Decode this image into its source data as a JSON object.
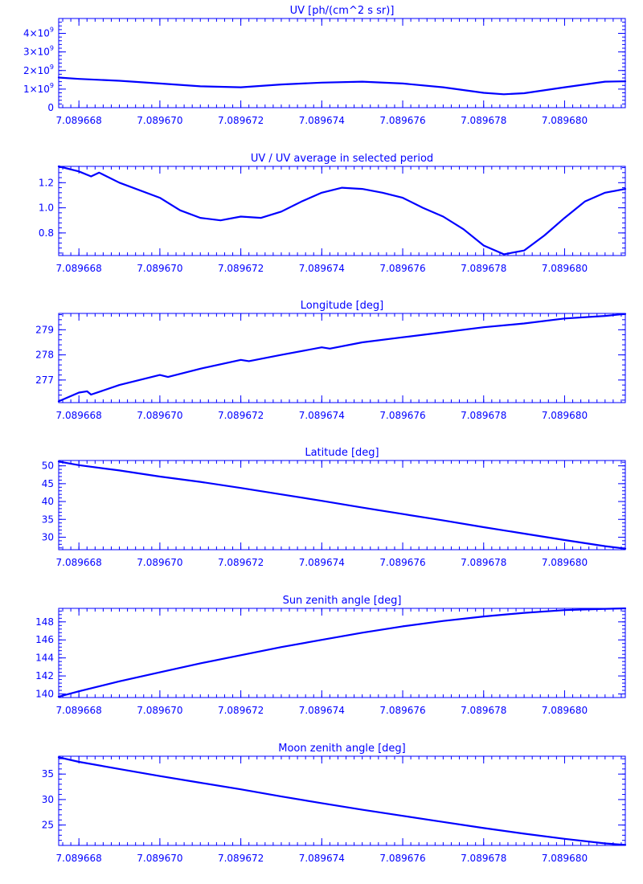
{
  "chart_data": [
    {
      "type": "line",
      "title": "UV [ph/(cm^2 s sr)]",
      "color": "#0000ff",
      "xlim": [
        7.0896675,
        7.0896815
      ],
      "ylim": [
        0,
        4800000000.0
      ],
      "xticks": [
        7.089668,
        7.08967,
        7.089672,
        7.089674,
        7.089676,
        7.089678,
        7.08968
      ],
      "xtick_labels": [
        "7.089668",
        "7.089670",
        "7.089672",
        "7.089674",
        "7.089676",
        "7.089678",
        "7.089680"
      ],
      "yticks": [
        0,
        1000000000.0,
        2000000000.0,
        3000000000.0,
        4000000000.0
      ],
      "ytick_labels": [
        {
          "mantissa": "0",
          "exp": ""
        },
        {
          "mantissa": "1×10",
          "exp": "9"
        },
        {
          "mantissa": "2×10",
          "exp": "9"
        },
        {
          "mantissa": "3×10",
          "exp": "9"
        },
        {
          "mantissa": "4×10",
          "exp": "9"
        }
      ],
      "x": [
        7.0896675,
        7.089668,
        7.089669,
        7.08967,
        7.089671,
        7.089672,
        7.089673,
        7.089674,
        7.089675,
        7.089676,
        7.089677,
        7.089678,
        7.0896785,
        7.089679,
        7.08968,
        7.089681,
        7.0896815
      ],
      "values": [
        1620000000.0,
        1550000000.0,
        1450000000.0,
        1300000000.0,
        1150000000.0,
        1100000000.0,
        1250000000.0,
        1350000000.0,
        1400000000.0,
        1300000000.0,
        1100000000.0,
        800000000.0,
        720000000.0,
        780000000.0,
        1100000000.0,
        1400000000.0,
        1420000000.0
      ]
    },
    {
      "type": "line",
      "title": "UV / UV average in selected period",
      "color": "#0000ff",
      "xlim": [
        7.0896675,
        7.0896815
      ],
      "ylim": [
        0.62,
        1.33
      ],
      "xticks": [
        7.089668,
        7.08967,
        7.089672,
        7.089674,
        7.089676,
        7.089678,
        7.08968
      ],
      "xtick_labels": [
        "7.089668",
        "7.089670",
        "7.089672",
        "7.089674",
        "7.089676",
        "7.089678",
        "7.089680"
      ],
      "yticks": [
        0.8,
        1.0,
        1.2
      ],
      "ytick_labels": [
        {
          "mantissa": "0.8",
          "exp": ""
        },
        {
          "mantissa": "1.0",
          "exp": ""
        },
        {
          "mantissa": "1.2",
          "exp": ""
        }
      ],
      "x": [
        7.0896675,
        7.089668,
        7.0896683,
        7.0896685,
        7.089669,
        7.08967,
        7.0896705,
        7.089671,
        7.0896715,
        7.089672,
        7.0896725,
        7.089673,
        7.0896735,
        7.089674,
        7.0896745,
        7.089675,
        7.0896755,
        7.089676,
        7.0896765,
        7.089677,
        7.0896775,
        7.089678,
        7.0896785,
        7.089679,
        7.0896795,
        7.08968,
        7.0896805,
        7.089681,
        7.0896815
      ],
      "values": [
        1.33,
        1.29,
        1.25,
        1.28,
        1.2,
        1.08,
        0.98,
        0.92,
        0.9,
        0.93,
        0.92,
        0.97,
        1.05,
        1.12,
        1.16,
        1.15,
        1.12,
        1.08,
        1.0,
        0.93,
        0.83,
        0.7,
        0.63,
        0.66,
        0.78,
        0.92,
        1.05,
        1.12,
        1.15
      ]
    },
    {
      "type": "line",
      "title": "Longitude [deg]",
      "color": "#0000ff",
      "xlim": [
        7.0896675,
        7.0896815
      ],
      "ylim": [
        276.1,
        279.65
      ],
      "xticks": [
        7.089668,
        7.08967,
        7.089672,
        7.089674,
        7.089676,
        7.089678,
        7.08968
      ],
      "xtick_labels": [
        "7.089668",
        "7.089670",
        "7.089672",
        "7.089674",
        "7.089676",
        "7.089678",
        "7.089680"
      ],
      "yticks": [
        277,
        278,
        279
      ],
      "ytick_labels": [
        {
          "mantissa": "277",
          "exp": ""
        },
        {
          "mantissa": "278",
          "exp": ""
        },
        {
          "mantissa": "279",
          "exp": ""
        }
      ],
      "x": [
        7.0896675,
        7.089668,
        7.0896682,
        7.0896683,
        7.089669,
        7.08967,
        7.0896702,
        7.089671,
        7.089672,
        7.0896722,
        7.089673,
        7.089674,
        7.0896742,
        7.089675,
        7.089676,
        7.089677,
        7.089678,
        7.089679,
        7.08968,
        7.089681,
        7.0896815
      ],
      "values": [
        276.15,
        276.5,
        276.55,
        276.42,
        276.8,
        277.2,
        277.12,
        277.45,
        277.8,
        277.75,
        278.0,
        278.3,
        278.25,
        278.5,
        278.7,
        278.9,
        279.1,
        279.25,
        279.45,
        279.55,
        279.63
      ]
    },
    {
      "type": "line",
      "title": "Latitude [deg]",
      "color": "#0000ff",
      "xlim": [
        7.0896675,
        7.0896815
      ],
      "ylim": [
        26.5,
        51.5
      ],
      "xticks": [
        7.089668,
        7.08967,
        7.089672,
        7.089674,
        7.089676,
        7.089678,
        7.08968
      ],
      "xtick_labels": [
        "7.089668",
        "7.089670",
        "7.089672",
        "7.089674",
        "7.089676",
        "7.089678",
        "7.089680"
      ],
      "yticks": [
        30,
        35,
        40,
        45,
        50
      ],
      "ytick_labels": [
        {
          "mantissa": "30",
          "exp": ""
        },
        {
          "mantissa": "35",
          "exp": ""
        },
        {
          "mantissa": "40",
          "exp": ""
        },
        {
          "mantissa": "45",
          "exp": ""
        },
        {
          "mantissa": "50",
          "exp": ""
        }
      ],
      "x": [
        7.0896675,
        7.089668,
        7.089669,
        7.08967,
        7.089671,
        7.089672,
        7.089673,
        7.089674,
        7.089675,
        7.089676,
        7.089677,
        7.089678,
        7.089679,
        7.08968,
        7.089681,
        7.0896815
      ],
      "values": [
        51.2,
        50.2,
        48.7,
        47.0,
        45.5,
        43.8,
        42.0,
        40.2,
        38.3,
        36.5,
        34.7,
        32.8,
        31.0,
        29.2,
        27.5,
        26.8
      ]
    },
    {
      "type": "line",
      "title": "Sun zenith angle [deg]",
      "color": "#0000ff",
      "xlim": [
        7.0896675,
        7.0896815
      ],
      "ylim": [
        139.6,
        149.5
      ],
      "xticks": [
        7.089668,
        7.08967,
        7.089672,
        7.089674,
        7.089676,
        7.089678,
        7.08968
      ],
      "xtick_labels": [
        "7.089668",
        "7.089670",
        "7.089672",
        "7.089674",
        "7.089676",
        "7.089678",
        "7.089680"
      ],
      "yticks": [
        140,
        142,
        144,
        146,
        148
      ],
      "ytick_labels": [
        {
          "mantissa": "140",
          "exp": ""
        },
        {
          "mantissa": "142",
          "exp": ""
        },
        {
          "mantissa": "144",
          "exp": ""
        },
        {
          "mantissa": "146",
          "exp": ""
        },
        {
          "mantissa": "148",
          "exp": ""
        }
      ],
      "x": [
        7.0896675,
        7.089668,
        7.089669,
        7.08967,
        7.089671,
        7.089672,
        7.089673,
        7.089674,
        7.089675,
        7.089676,
        7.089677,
        7.089678,
        7.089679,
        7.08968,
        7.089681,
        7.0896815
      ],
      "values": [
        139.7,
        140.3,
        141.4,
        142.4,
        143.4,
        144.3,
        145.2,
        146.0,
        146.8,
        147.5,
        148.1,
        148.6,
        149.0,
        149.3,
        149.45,
        149.5
      ]
    },
    {
      "type": "line",
      "title": "Moon zenith angle [deg]",
      "color": "#0000ff",
      "xlim": [
        7.0896675,
        7.0896815
      ],
      "ylim": [
        21.0,
        38.5
      ],
      "xticks": [
        7.089668,
        7.08967,
        7.089672,
        7.089674,
        7.089676,
        7.089678,
        7.08968
      ],
      "xtick_labels": [
        "7.089668",
        "7.089670",
        "7.089672",
        "7.089674",
        "7.089676",
        "7.089678",
        "7.089680"
      ],
      "yticks": [
        25,
        30,
        35
      ],
      "ytick_labels": [
        {
          "mantissa": "25",
          "exp": ""
        },
        {
          "mantissa": "30",
          "exp": ""
        },
        {
          "mantissa": "35",
          "exp": ""
        }
      ],
      "x": [
        7.0896675,
        7.089668,
        7.089669,
        7.08967,
        7.089671,
        7.089672,
        7.089673,
        7.089674,
        7.089675,
        7.089676,
        7.089677,
        7.089678,
        7.089679,
        7.08968,
        7.089681,
        7.0896815
      ],
      "values": [
        38.3,
        37.4,
        36.0,
        34.6,
        33.3,
        32.0,
        30.6,
        29.3,
        28.0,
        26.8,
        25.6,
        24.4,
        23.3,
        22.3,
        21.4,
        21.1
      ]
    }
  ]
}
